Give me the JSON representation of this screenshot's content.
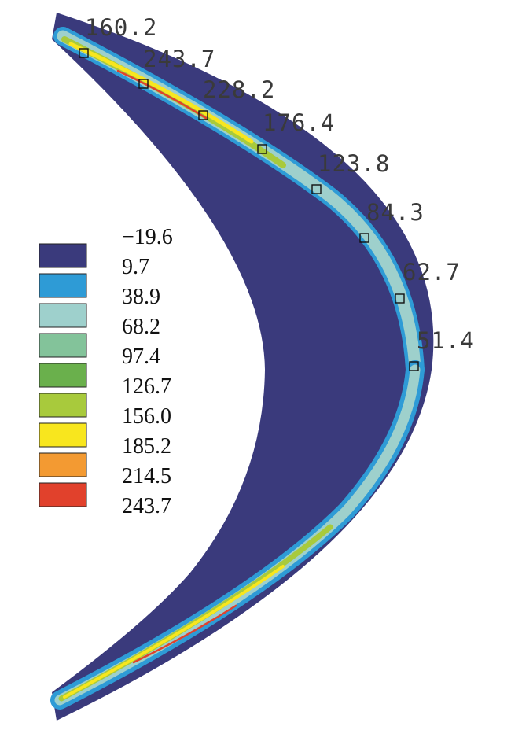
{
  "legend": {
    "levels": [
      "−19.6",
      "9.7",
      "38.9",
      "68.2",
      "97.4",
      "126.7",
      "156.0",
      "185.2",
      "214.5",
      "243.7"
    ],
    "colors": [
      "#3a3a7c",
      "#2e9bd6",
      "#9ed0cc",
      "#83c39a",
      "#6ab04c",
      "#a8ca3c",
      "#f8e61e",
      "#f39a32",
      "#e1412c"
    ]
  },
  "probes": [
    "160.2",
    "243.7",
    "228.2",
    "176.4",
    "123.8",
    "84.3",
    "62.7",
    "51.4"
  ],
  "colors": {
    "body": "#3a3a7c",
    "band_cyan": "#2e9bd6",
    "band_pale": "#9ed0cc",
    "band_green": "#a8ca3c",
    "band_yellow": "#f8e61e",
    "band_red": "#e1412c"
  }
}
